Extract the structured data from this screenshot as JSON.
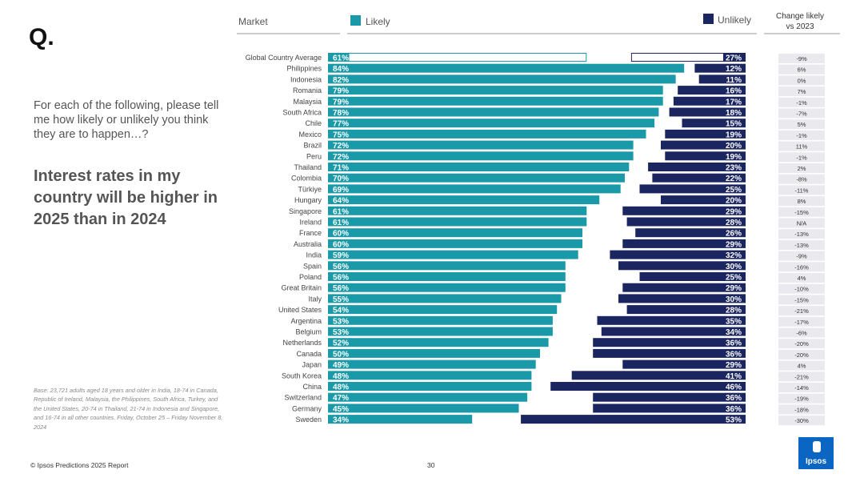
{
  "slide": {
    "q_mark": "Q.",
    "prompt": "For each of the following, please tell me how likely or unlikely you think they are to happen…?",
    "headline": "Interest rates in my country will be higher in 2025 than in 2024",
    "base_note": "Base: 23,721 adults aged 18 years and older in India, 18-74 in Canada, Republic of Ireland, Malaysia, the Philippines, South Africa, Turkey, and the United States, 20-74 in Thailand, 21-74 in Indonesia and Singapore, and 16-74 in all other countries. Friday, October 25 – Friday November 8, 2024",
    "footer": "© Ipsos Predictions 2025 Report",
    "page_number": "30",
    "logo_text": "Ipsos"
  },
  "colors": {
    "likely": "#1a9aa8",
    "unlikely": "#1b2660",
    "change_bg": "#e9e9ee",
    "axis": "#999999"
  },
  "chart_data": {
    "type": "bar",
    "title": "Interest rates in my country will be higher in 2025 than in 2024",
    "header_market": "Market",
    "header_change": [
      "Change likely",
      "vs 2023"
    ],
    "categories": [
      "Global Country Average",
      "Philippines",
      "Indonesia",
      "Romania",
      "Malaysia",
      "South Africa",
      "Chile",
      "Mexico",
      "Brazil",
      "Peru",
      "Thailand",
      "Colombia",
      "Türkiye",
      "Hungary",
      "Singapore",
      "Ireland",
      "France",
      "Australia",
      "India",
      "Spain",
      "Poland",
      "Great Britain",
      "Italy",
      "United States",
      "Argentina",
      "Belgium",
      "Netherlands",
      "Canada",
      "Japan",
      "South Korea",
      "China",
      "Switzerland",
      "Germany",
      "Sweden"
    ],
    "series": [
      {
        "name": "Likely",
        "values": [
          61,
          84,
          82,
          79,
          79,
          78,
          77,
          75,
          72,
          72,
          71,
          70,
          69,
          64,
          61,
          61,
          60,
          60,
          59,
          56,
          56,
          56,
          55,
          54,
          53,
          53,
          52,
          50,
          49,
          48,
          48,
          47,
          45,
          34
        ]
      },
      {
        "name": "Unlikely",
        "values": [
          27,
          12,
          11,
          16,
          17,
          18,
          15,
          19,
          20,
          19,
          23,
          22,
          25,
          20,
          29,
          28,
          26,
          29,
          32,
          30,
          25,
          29,
          30,
          28,
          35,
          34,
          36,
          36,
          29,
          41,
          46,
          36,
          36,
          53
        ]
      }
    ],
    "change_vs_2023": [
      "-9%",
      "6%",
      "0%",
      "7%",
      "-1%",
      "-7%",
      "5%",
      "-1%",
      "11%",
      "-1%",
      "2%",
      "-8%",
      "-11%",
      "8%",
      "-15%",
      "N/A",
      "-13%",
      "-13%",
      "-9%",
      "-16%",
      "4%",
      "-10%",
      "-15%",
      "-21%",
      "-17%",
      "-6%",
      "-20%",
      "-20%",
      "4%",
      "-21%",
      "-14%",
      "-19%",
      "-18%",
      "-30%"
    ],
    "value_suffix": "%",
    "ylim": [
      0,
      100
    ]
  }
}
